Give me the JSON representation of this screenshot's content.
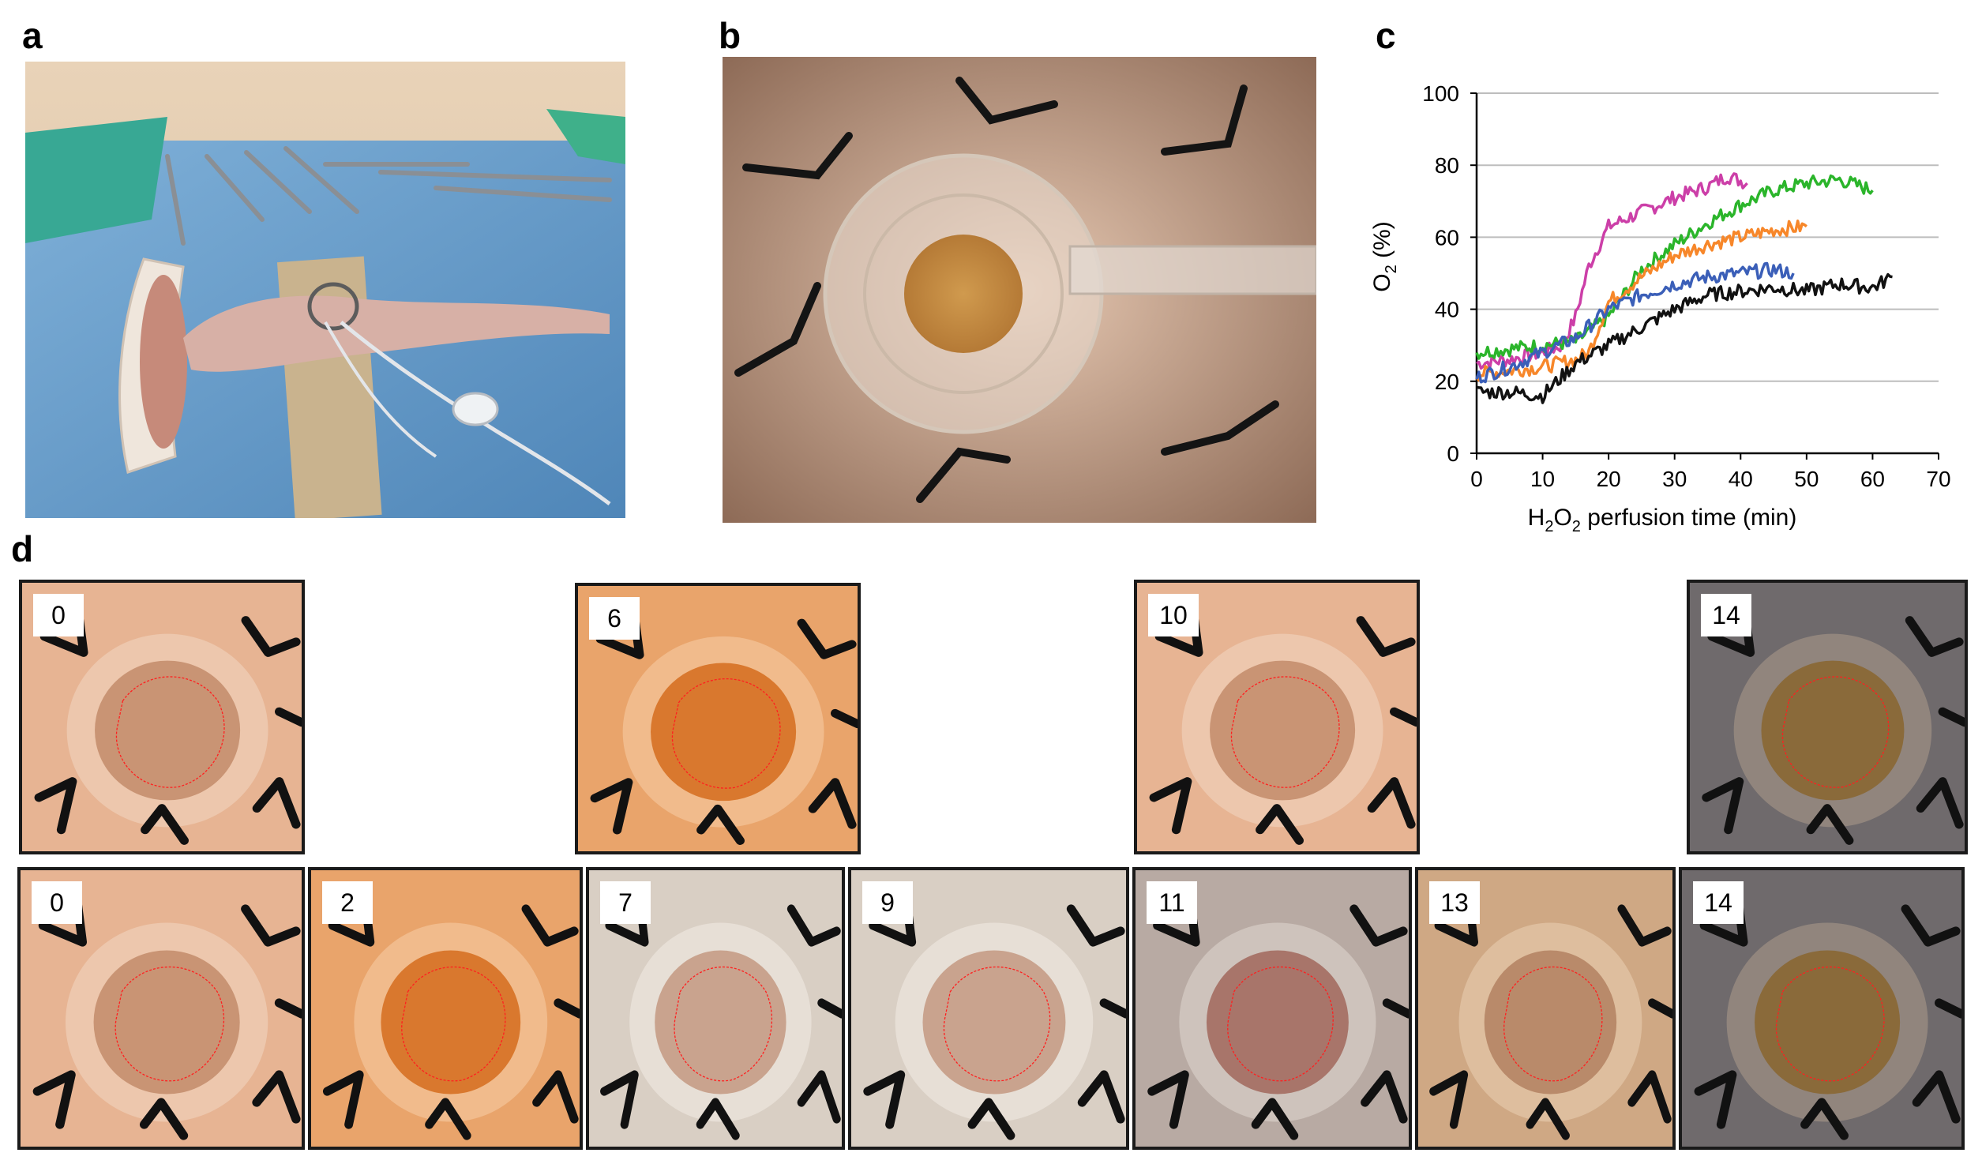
{
  "figure": {
    "panel_labels": {
      "a": "a",
      "b": "b",
      "c": "c",
      "d": "d"
    }
  },
  "panel_a": {
    "photo": "mouse-on-surgical-drape-with-catheter"
  },
  "panel_b": {
    "photo": "sutured-implant-device-with-tubing"
  },
  "chart_data": {
    "type": "line",
    "xlabel": "H2O2 perfusion time (min)",
    "xlabel_parts": {
      "pre": "H",
      "sub1": "2",
      "mid": "O",
      "sub2": "2",
      "post": " perfusion time (min)"
    },
    "ylabel": "O2 (%)",
    "ylabel_parts": {
      "pre": "O",
      "sub": "2",
      "post": " (%)"
    },
    "xlim": [
      0,
      70
    ],
    "ylim": [
      0,
      100
    ],
    "xticks": [
      "0",
      "10",
      "20",
      "30",
      "40",
      "50",
      "60",
      "70"
    ],
    "yticks": [
      "0",
      "20",
      "40",
      "60",
      "80",
      "100"
    ],
    "grid": "horizontal",
    "series": [
      {
        "color": "#cc3fa8",
        "x": [
          0,
          5,
          10,
          13,
          15,
          17,
          20,
          25,
          30,
          35,
          38,
          41
        ],
        "y": [
          25,
          26,
          28,
          30,
          38,
          52,
          63,
          67,
          71,
          74,
          77,
          75
        ]
      },
      {
        "color": "#2bb52b",
        "x": [
          0,
          5,
          10,
          15,
          20,
          25,
          30,
          35,
          40,
          45,
          50,
          55,
          60
        ],
        "y": [
          28,
          29,
          30,
          31,
          38,
          51,
          58,
          64,
          69,
          73,
          75,
          76,
          73
        ]
      },
      {
        "color": "#f7872a",
        "x": [
          0,
          5,
          10,
          15,
          17,
          20,
          25,
          30,
          35,
          40,
          45,
          50
        ],
        "y": [
          22,
          23,
          24,
          26,
          28,
          42,
          49,
          55,
          58,
          60,
          62,
          63
        ]
      },
      {
        "color": "#3b5fb8",
        "x": [
          0,
          5,
          10,
          15,
          20,
          25,
          30,
          35,
          40,
          45,
          48
        ],
        "y": [
          21,
          24,
          28,
          32,
          40,
          44,
          47,
          49,
          50,
          51,
          50
        ]
      },
      {
        "color": "#111111",
        "x": [
          0,
          5,
          10,
          15,
          20,
          25,
          30,
          35,
          40,
          45,
          50,
          55,
          60,
          63
        ],
        "y": [
          17,
          17,
          16,
          25,
          30,
          35,
          40,
          44,
          45,
          46,
          45,
          47,
          46,
          49
        ]
      }
    ]
  },
  "panel_d": {
    "top_row": [
      {
        "day": "0",
        "tone": "pink"
      },
      {
        "day": "6",
        "tone": "orange"
      },
      {
        "day": "10",
        "tone": "pink"
      },
      {
        "day": "14",
        "tone": "dark"
      }
    ],
    "bottom_row": [
      {
        "day": "0",
        "tone": "pink"
      },
      {
        "day": "2",
        "tone": "orange"
      },
      {
        "day": "7",
        "tone": "pale"
      },
      {
        "day": "9",
        "tone": "pale"
      },
      {
        "day": "11",
        "tone": "grey"
      },
      {
        "day": "13",
        "tone": "tan"
      },
      {
        "day": "14",
        "tone": "dark"
      }
    ]
  }
}
